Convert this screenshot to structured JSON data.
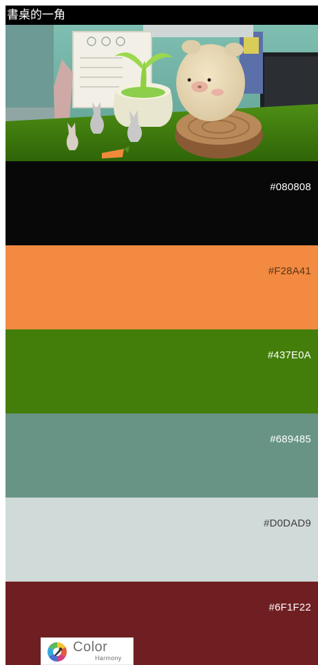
{
  "header": {
    "title": "書桌的一角"
  },
  "photo": {
    "subject": "desk-corner-figurines-photo"
  },
  "palette": {
    "swatches": [
      {
        "hex": "#080808",
        "color": "#080808",
        "text_color": "#ffffff"
      },
      {
        "hex": "#F28A41",
        "color": "#F28A41",
        "text_color": "#5a3418"
      },
      {
        "hex": "#437E0A",
        "color": "#437E0A",
        "text_color": "#ffffff"
      },
      {
        "hex": "#689485",
        "color": "#689485",
        "text_color": "#ffffff"
      },
      {
        "hex": "#D0DAD9",
        "color": "#D0DAD9",
        "text_color": "#3d3d3d"
      },
      {
        "hex": "#6F1F22",
        "color": "#6F1F22",
        "text_color": "#ffffff"
      }
    ]
  },
  "logo": {
    "word": "Color",
    "sub": "Harmony",
    "icon": "color-wheel-eyedropper-icon"
  }
}
